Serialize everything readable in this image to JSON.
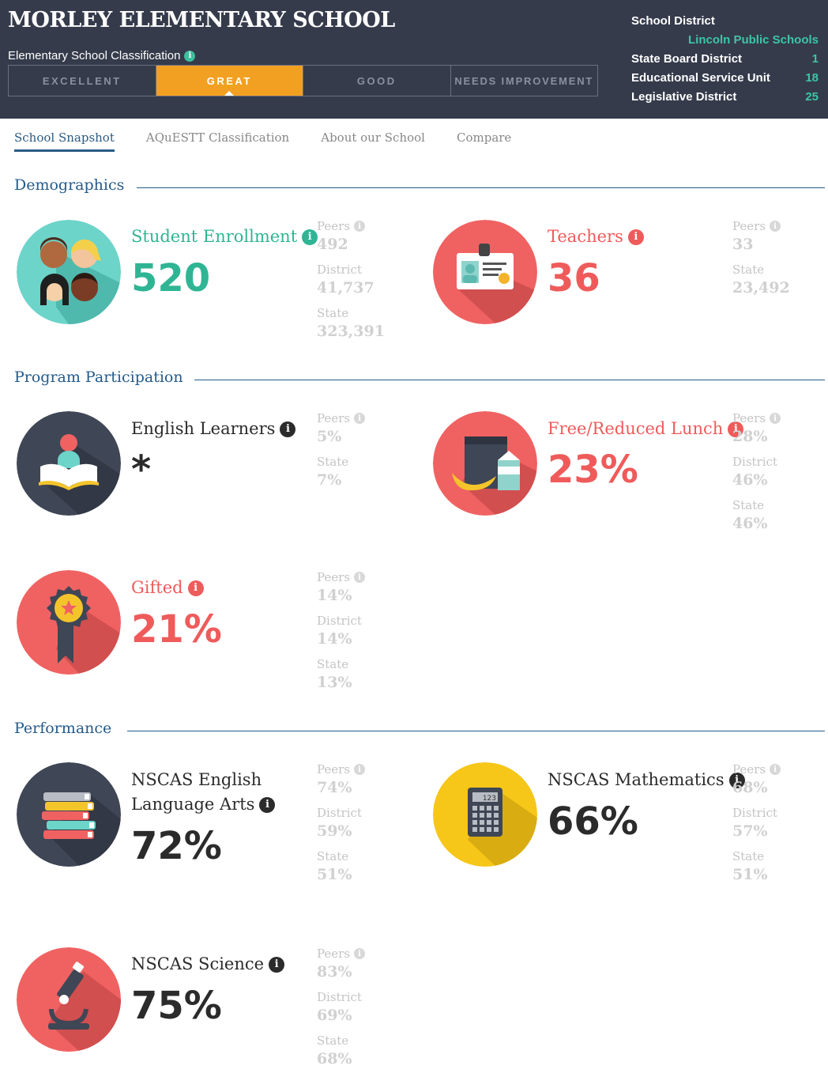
{
  "header": {
    "school_name": "MORLEY ELEMENTARY SCHOOL",
    "classification_label": "Elementary School Classification",
    "classification": [
      {
        "label": "EXCELLENT",
        "active": false
      },
      {
        "label": "GREAT",
        "active": true
      },
      {
        "label": "GOOD",
        "active": false
      },
      {
        "label": "NEEDS IMPROVEMENT",
        "active": false
      }
    ],
    "school_district_label": "School District",
    "school_district_value": "Lincoln Public Schools",
    "state_board_label": "State Board District",
    "state_board_value": "1",
    "esu_label": "Educational Service Unit",
    "esu_value": "18",
    "legislative_label": "Legislative District",
    "legislative_value": "25"
  },
  "tabs": [
    "School Snapshot",
    "AQuESTT Classification",
    "About our School",
    "Compare"
  ],
  "sections": {
    "demographics": "Demographics",
    "program": "Program Participation",
    "performance": "Performance"
  },
  "info_glyph": "i",
  "metrics": {
    "enrollment": {
      "label": "Student Enrollment",
      "value": "520",
      "icon": "students-icon",
      "compare": [
        {
          "label": "Peers",
          "value": "492"
        },
        {
          "label": "District",
          "value": "41,737"
        },
        {
          "label": "State",
          "value": "323,391"
        }
      ]
    },
    "teachers": {
      "label": "Teachers",
      "value": "36",
      "icon": "id-badge-icon",
      "compare": [
        {
          "label": "Peers",
          "value": "33"
        },
        {
          "label": "State",
          "value": "23,492"
        }
      ]
    },
    "english_learners": {
      "label": "English Learners",
      "value": "*",
      "icon": "book-reader-icon",
      "compare": [
        {
          "label": "Peers",
          "value": "5%"
        },
        {
          "label": "State",
          "value": "7%"
        }
      ]
    },
    "lunch": {
      "label": "Free/Reduced Lunch",
      "value": "23%",
      "icon": "lunch-bag-icon",
      "compare": [
        {
          "label": "Peers",
          "value": "28%"
        },
        {
          "label": "District",
          "value": "46%"
        },
        {
          "label": "State",
          "value": "46%"
        }
      ]
    },
    "gifted": {
      "label": "Gifted",
      "value": "21%",
      "icon": "award-ribbon-icon",
      "compare": [
        {
          "label": "Peers",
          "value": "14%"
        },
        {
          "label": "District",
          "value": "14%"
        },
        {
          "label": "State",
          "value": "13%"
        }
      ]
    },
    "ela": {
      "label_line1": "NSCAS English",
      "label_line2": "Language Arts",
      "value": "72%",
      "icon": "books-stack-icon",
      "compare": [
        {
          "label": "Peers",
          "value": "74%"
        },
        {
          "label": "District",
          "value": "59%"
        },
        {
          "label": "State",
          "value": "51%"
        }
      ]
    },
    "math": {
      "label": "NSCAS Mathematics",
      "value": "66%",
      "icon": "calculator-icon",
      "calc_display": "123",
      "compare": [
        {
          "label": "Peers",
          "value": "68%"
        },
        {
          "label": "District",
          "value": "57%"
        },
        {
          "label": "State",
          "value": "51%"
        }
      ]
    },
    "science": {
      "label": "NSCAS Science",
      "value": "75%",
      "icon": "microscope-icon",
      "compare": [
        {
          "label": "Peers",
          "value": "83%"
        },
        {
          "label": "District",
          "value": "69%"
        },
        {
          "label": "State",
          "value": "68%"
        }
      ]
    }
  },
  "colors": {
    "header_bg": "#353b4b",
    "accent_orange": "#f2a022",
    "teal": "#2fb594",
    "coral": "#ef5b5b",
    "navy": "#245a8a",
    "yellow": "#f6c619",
    "slate": "#3f4655"
  }
}
